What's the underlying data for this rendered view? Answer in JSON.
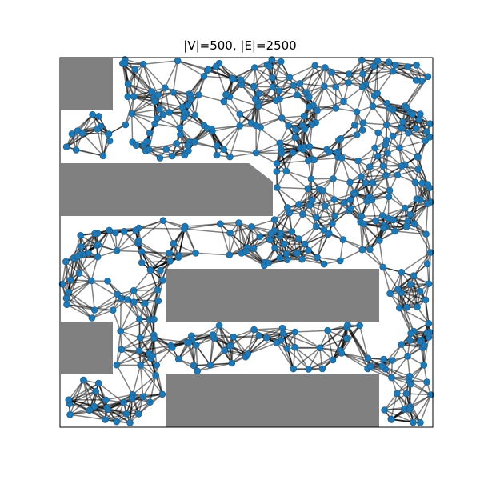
{
  "title": "|V|=500, |E|=2500",
  "colors": {
    "node": "#1f77b4",
    "node_edge": "#1a5a87",
    "edge": "#000000",
    "obstacle": "#808080",
    "frame": "#000000",
    "background": "#ffffff"
  },
  "graph": {
    "vertex_count": 500,
    "edge_count": 2500,
    "node_shape": "circle",
    "edge_opacity": 0.5
  },
  "obstacles": [
    {
      "name": "obstacle-top-left",
      "shape": "rectangle"
    },
    {
      "name": "obstacle-upper-wide",
      "shape": "rectangle"
    },
    {
      "name": "obstacle-middle-right",
      "shape": "rectangle"
    },
    {
      "name": "obstacle-lower-left",
      "shape": "rectangle"
    },
    {
      "name": "obstacle-bottom",
      "shape": "rectangle"
    }
  ]
}
